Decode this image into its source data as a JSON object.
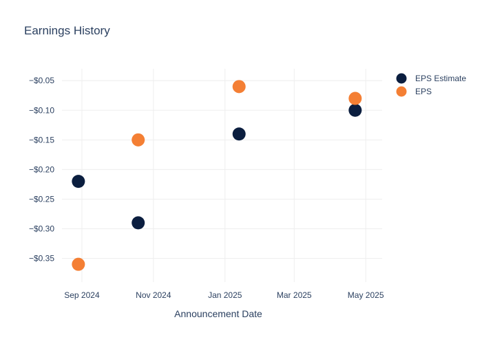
{
  "chart_data": {
    "type": "scatter",
    "title": "Earnings History",
    "xlabel": "Announcement Date",
    "ylabel": "",
    "x_axis": {
      "type": "date",
      "range": [
        "2024-08-15",
        "2025-05-15"
      ],
      "ticks": [
        {
          "value": "2024-09-01",
          "label": "Sep 2024"
        },
        {
          "value": "2024-11-01",
          "label": "Nov 2024"
        },
        {
          "value": "2025-01-01",
          "label": "Jan 2025"
        },
        {
          "value": "2025-03-01",
          "label": "Mar 2025"
        },
        {
          "value": "2025-05-01",
          "label": "May 2025"
        }
      ]
    },
    "y_axis": {
      "range": [
        -0.39,
        -0.03
      ],
      "ticks": [
        {
          "value": -0.05,
          "label": "−$0.05"
        },
        {
          "value": -0.1,
          "label": "−$0.10"
        },
        {
          "value": -0.15,
          "label": "−$0.15"
        },
        {
          "value": -0.2,
          "label": "−$0.20"
        },
        {
          "value": -0.25,
          "label": "−$0.25"
        },
        {
          "value": -0.3,
          "label": "−$0.30"
        },
        {
          "value": -0.35,
          "label": "−$0.35"
        }
      ]
    },
    "grid": true,
    "legend_position": "top-right",
    "series": [
      {
        "name": "EPS Estimate",
        "color": "#0b1e3f",
        "points": [
          {
            "x": "2024-08-29",
            "y": -0.22
          },
          {
            "x": "2024-10-19",
            "y": -0.29
          },
          {
            "x": "2025-01-13",
            "y": -0.14
          },
          {
            "x": "2025-04-22",
            "y": -0.1
          }
        ]
      },
      {
        "name": "EPS",
        "color": "#f47f34",
        "points": [
          {
            "x": "2024-08-29",
            "y": -0.36
          },
          {
            "x": "2024-10-19",
            "y": -0.15
          },
          {
            "x": "2025-01-13",
            "y": -0.06
          },
          {
            "x": "2025-04-22",
            "y": -0.08
          }
        ]
      }
    ]
  }
}
